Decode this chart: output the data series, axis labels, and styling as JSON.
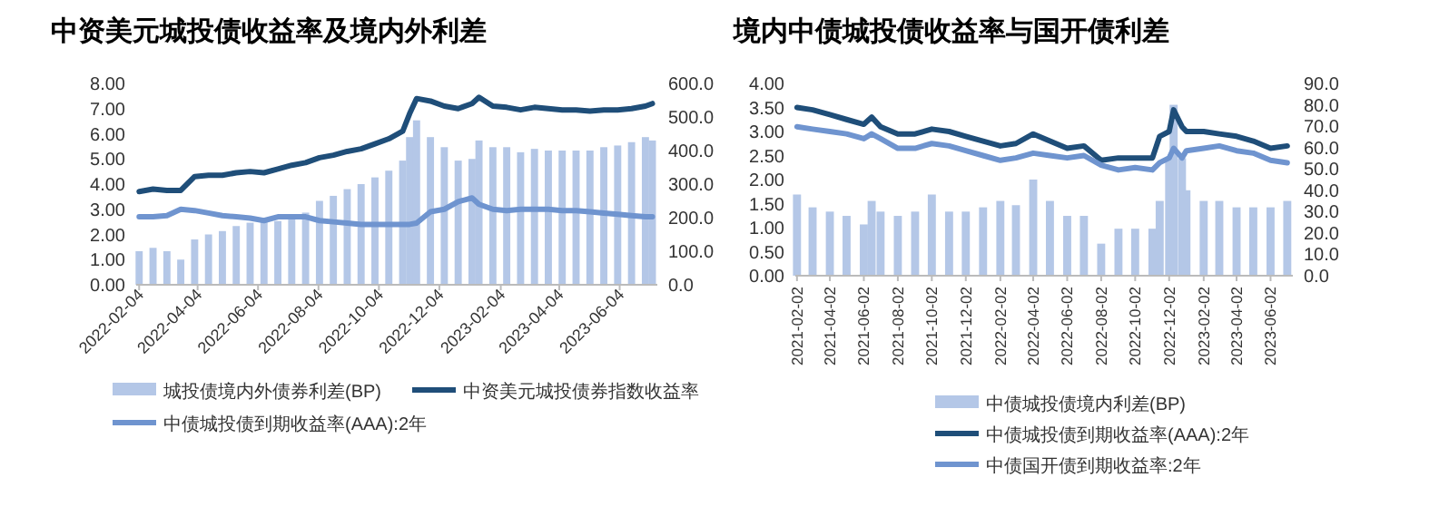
{
  "chart_data": [
    {
      "type": "line",
      "title": "中资美元城投债收益率及境内外利差",
      "x": [
        "2022-02-04",
        "2022-02-18",
        "2022-03-04",
        "2022-03-18",
        "2022-04-01",
        "2022-04-15",
        "2022-04-29",
        "2022-05-13",
        "2022-05-27",
        "2022-06-10",
        "2022-06-24",
        "2022-07-08",
        "2022-07-22",
        "2022-08-05",
        "2022-08-19",
        "2022-09-02",
        "2022-09-16",
        "2022-09-30",
        "2022-10-14",
        "2022-10-28",
        "2022-11-04",
        "2022-11-11",
        "2022-11-25",
        "2022-12-09",
        "2022-12-23",
        "2023-01-06",
        "2023-01-13",
        "2023-01-27",
        "2023-02-10",
        "2023-02-24",
        "2023-03-10",
        "2023-03-24",
        "2023-04-07",
        "2023-04-21",
        "2023-05-05",
        "2023-05-19",
        "2023-06-02",
        "2023-06-16",
        "2023-06-30",
        "2023-07-07"
      ],
      "series": [
        {
          "name": "城投债境内外债券利差(BP)",
          "type": "bar",
          "axis": "y2",
          "color": "#b4c7e7",
          "values": [
            100,
            110,
            100,
            75,
            135,
            150,
            160,
            175,
            185,
            190,
            190,
            205,
            215,
            250,
            265,
            285,
            300,
            320,
            340,
            370,
            440,
            490,
            440,
            410,
            370,
            375,
            430,
            410,
            410,
            395,
            405,
            400,
            400,
            400,
            400,
            410,
            415,
            425,
            440,
            430
          ]
        },
        {
          "name": "中资美元城投债券指数收益率",
          "color": "#1f4e79",
          "values": [
            3.7,
            3.8,
            3.75,
            3.75,
            4.3,
            4.35,
            4.35,
            4.45,
            4.5,
            4.45,
            4.6,
            4.75,
            4.85,
            5.05,
            5.15,
            5.3,
            5.4,
            5.6,
            5.8,
            6.1,
            6.8,
            7.4,
            7.3,
            7.1,
            7.0,
            7.2,
            7.45,
            7.1,
            7.05,
            6.95,
            7.05,
            7.0,
            6.95,
            6.95,
            6.9,
            6.95,
            6.95,
            7.0,
            7.1,
            7.2
          ]
        },
        {
          "name": "中债城投债到期收益率(AAA):2年",
          "color": "#6f94cf",
          "values": [
            2.7,
            2.7,
            2.75,
            3.0,
            2.95,
            2.85,
            2.75,
            2.7,
            2.65,
            2.55,
            2.7,
            2.7,
            2.7,
            2.55,
            2.5,
            2.45,
            2.4,
            2.4,
            2.4,
            2.4,
            2.4,
            2.45,
            2.9,
            3.0,
            3.3,
            3.45,
            3.2,
            3.0,
            2.95,
            3.0,
            3.0,
            3.0,
            2.95,
            2.95,
            2.9,
            2.85,
            2.8,
            2.75,
            2.7,
            2.7
          ]
        }
      ],
      "xlim": [
        "2022-02-01",
        "2023-07-12"
      ],
      "xticks": [
        "2022-02-04",
        "2022-04-04",
        "2022-06-04",
        "2022-08-04",
        "2022-10-04",
        "2022-12-04",
        "2023-02-04",
        "2023-04-04",
        "2023-06-04"
      ],
      "ylim": [
        0,
        8
      ],
      "yticks": [
        {
          "value": 0,
          "label": "0.00"
        },
        {
          "value": 1,
          "label": "1.00"
        },
        {
          "value": 2,
          "label": "2.00"
        },
        {
          "value": 3,
          "label": "3.00"
        },
        {
          "value": 4,
          "label": "4.00"
        },
        {
          "value": 5,
          "label": "5.00"
        },
        {
          "value": 6,
          "label": "6.00"
        },
        {
          "value": 7,
          "label": "7.00"
        },
        {
          "value": 8,
          "label": "8.00"
        }
      ],
      "y2lim": [
        0,
        600
      ],
      "y2ticks": [
        {
          "value": 0,
          "label": "0.0"
        },
        {
          "value": 100,
          "label": "100.0"
        },
        {
          "value": 200,
          "label": "200.0"
        },
        {
          "value": 300,
          "label": "300.0"
        },
        {
          "value": 400,
          "label": "400.0"
        },
        {
          "value": 500,
          "label": "500.0"
        },
        {
          "value": 600,
          "label": "600.0"
        }
      ],
      "legend": "bottom",
      "grid": false,
      "marker": "none",
      "line_style": "solid"
    },
    {
      "type": "line",
      "title": "境内中债城投债收益率与国开债利差",
      "x": [
        "2021-02-02",
        "2021-03-02",
        "2021-04-02",
        "2021-05-02",
        "2021-06-02",
        "2021-06-16",
        "2021-07-02",
        "2021-08-02",
        "2021-09-02",
        "2021-10-02",
        "2021-11-02",
        "2021-12-02",
        "2022-01-02",
        "2022-02-02",
        "2022-03-02",
        "2022-04-02",
        "2022-05-02",
        "2022-06-02",
        "2022-07-02",
        "2022-08-02",
        "2022-09-02",
        "2022-10-02",
        "2022-11-02",
        "2022-11-15",
        "2022-12-02",
        "2022-12-10",
        "2022-12-25",
        "2023-01-02",
        "2023-02-02",
        "2023-03-02",
        "2023-04-02",
        "2023-05-02",
        "2023-06-02",
        "2023-07-02"
      ],
      "series": [
        {
          "name": "中债城投债境内利差(BP)",
          "type": "bar",
          "axis": "y2",
          "color": "#b4c7e7",
          "values": [
            38,
            32,
            30,
            28,
            24,
            35,
            30,
            28,
            30,
            38,
            30,
            30,
            32,
            35,
            33,
            45,
            35,
            28,
            28,
            15,
            22,
            22,
            22,
            35,
            55,
            80,
            55,
            40,
            35,
            35,
            32,
            32,
            32,
            35
          ]
        },
        {
          "name": "中债城投债到期收益率(AAA):2年",
          "color": "#1f4e79",
          "values": [
            3.5,
            3.45,
            3.35,
            3.25,
            3.15,
            3.3,
            3.1,
            2.95,
            2.95,
            3.05,
            3.0,
            2.9,
            2.8,
            2.7,
            2.75,
            2.95,
            2.8,
            2.65,
            2.7,
            2.4,
            2.45,
            2.45,
            2.45,
            2.9,
            3.0,
            3.45,
            3.1,
            3.0,
            3.0,
            2.95,
            2.9,
            2.8,
            2.65,
            2.7
          ]
        },
        {
          "name": "中债国开债到期收益率:2年",
          "color": "#6f94cf",
          "values": [
            3.1,
            3.05,
            3.0,
            2.95,
            2.85,
            2.95,
            2.85,
            2.65,
            2.65,
            2.75,
            2.7,
            2.6,
            2.5,
            2.4,
            2.45,
            2.55,
            2.5,
            2.45,
            2.5,
            2.3,
            2.2,
            2.25,
            2.2,
            2.35,
            2.45,
            2.65,
            2.45,
            2.6,
            2.65,
            2.7,
            2.6,
            2.55,
            2.4,
            2.35
          ]
        }
      ],
      "xlim": [
        "2021-01-30",
        "2023-07-12"
      ],
      "xticks": [
        "2021-02-02",
        "2021-04-02",
        "2021-06-02",
        "2021-08-02",
        "2021-10-02",
        "2021-12-02",
        "2022-02-02",
        "2022-04-02",
        "2022-06-02",
        "2022-08-02",
        "2022-10-02",
        "2022-12-02",
        "2023-02-02",
        "2023-04-02",
        "2023-06-02"
      ],
      "ylim": [
        0,
        4
      ],
      "yticks": [
        {
          "value": 0,
          "label": "0.00"
        },
        {
          "value": 0.5,
          "label": "0.50"
        },
        {
          "value": 1,
          "label": "1.00"
        },
        {
          "value": 1.5,
          "label": "1.50"
        },
        {
          "value": 2,
          "label": "2.00"
        },
        {
          "value": 2.5,
          "label": "2.50"
        },
        {
          "value": 3,
          "label": "3.00"
        },
        {
          "value": 3.5,
          "label": "3.50"
        },
        {
          "value": 4,
          "label": "4.00"
        }
      ],
      "y2lim": [
        0,
        90
      ],
      "y2ticks": [
        {
          "value": 0,
          "label": "0.0"
        },
        {
          "value": 10,
          "label": "10.0"
        },
        {
          "value": 20,
          "label": "20.0"
        },
        {
          "value": 30,
          "label": "30.0"
        },
        {
          "value": 40,
          "label": "40.0"
        },
        {
          "value": 50,
          "label": "50.0"
        },
        {
          "value": 60,
          "label": "60.0"
        },
        {
          "value": 70,
          "label": "70.0"
        },
        {
          "value": 80,
          "label": "80.0"
        },
        {
          "value": 90,
          "label": "90.0"
        }
      ],
      "legend": "bottom",
      "grid": false,
      "marker": "none",
      "line_style": "solid"
    }
  ]
}
